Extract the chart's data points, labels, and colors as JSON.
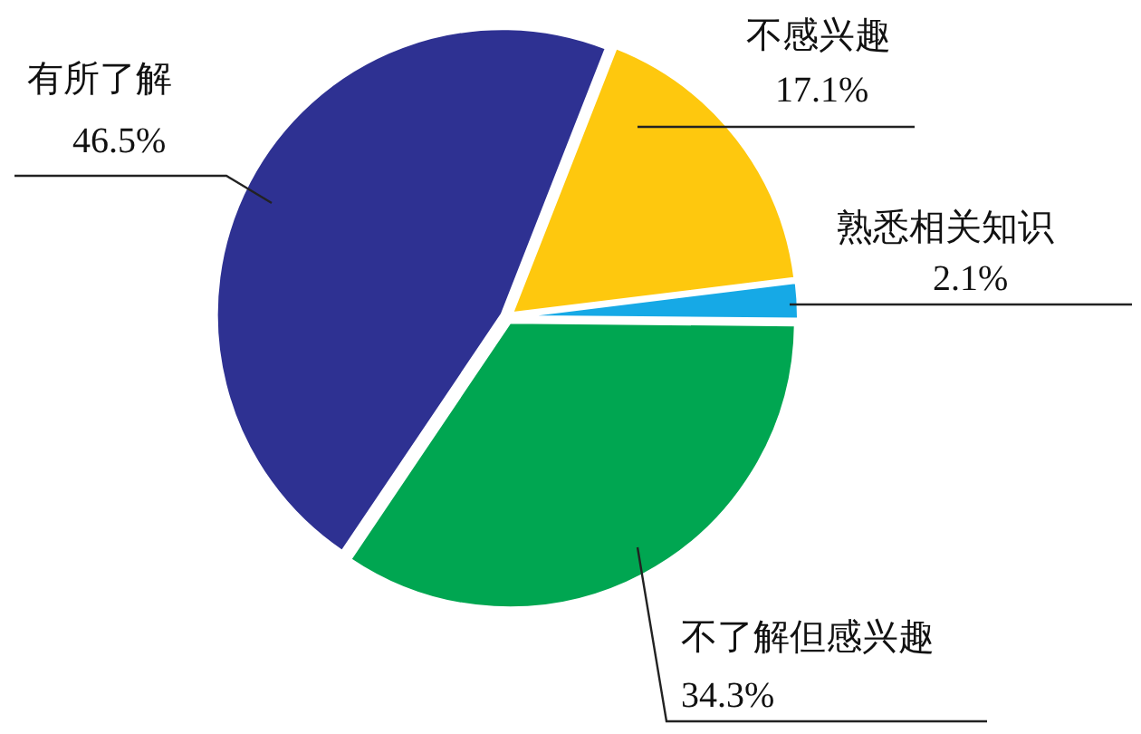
{
  "chart_data": {
    "type": "pie",
    "categories": [
      "有所了解",
      "不感兴趣",
      "熟悉相关知识",
      "不了解但感兴趣"
    ],
    "values": [
      46.5,
      17.1,
      2.1,
      34.3
    ],
    "value_labels": [
      "46.5%",
      "17.1%",
      "2.1%",
      "34.3%"
    ],
    "colors": [
      "#2e3192",
      "#fec80e",
      "#16a9e6",
      "#00a651"
    ]
  }
}
